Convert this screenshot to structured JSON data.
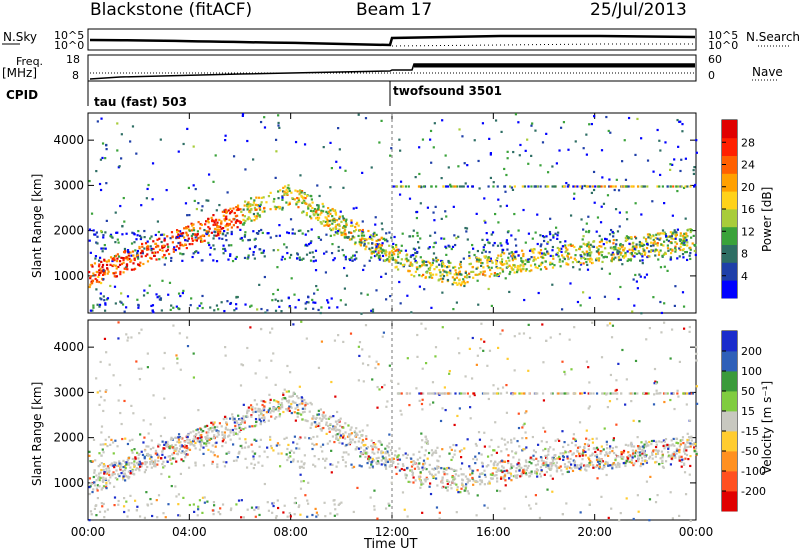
{
  "header": {
    "title": "Blackstone (fitACF)",
    "beam": "Beam 17",
    "date": "25/Jul/2013"
  },
  "summary": {
    "nsky_label": "N.Sky",
    "nsearch_label": "N.Search",
    "noise_ticks": [
      "10^5",
      "10^0"
    ],
    "freq_label": "Freq.",
    "freq_unit": "[MHz]",
    "freq_ticks": [
      "18",
      "8"
    ],
    "nave_label": "Nave",
    "nave_ticks": [
      "60",
      "0"
    ],
    "cpid_label": "CPID",
    "modes": [
      {
        "name": "tau (fast) 503"
      },
      {
        "name": "twofsound 3501"
      }
    ]
  },
  "chart_data": [
    {
      "type": "heatmap",
      "title": "",
      "xlabel": "Time UT",
      "ylabel": "Slant Range [km]",
      "x_ticks": [
        "00:00",
        "04:00",
        "08:00",
        "12:00",
        "16:00",
        "20:00",
        "00:00"
      ],
      "x_range_hours": [
        0,
        24
      ],
      "y_ticks": [
        1000,
        2000,
        3000,
        4000
      ],
      "ylim": [
        180,
        4600
      ],
      "colorbar": {
        "label": "Power [dB]",
        "ticks": [
          4,
          8,
          12,
          16,
          20,
          24,
          28
        ],
        "range": [
          0,
          32
        ],
        "colors": [
          "#0000ff",
          "#1f3fa8",
          "#2e6e64",
          "#3aa23a",
          "#a8cc3a",
          "#ffd21a",
          "#ffa000",
          "#ff6000",
          "#ff2000",
          "#e00000"
        ]
      }
    },
    {
      "type": "heatmap",
      "title": "",
      "xlabel": "Time UT",
      "ylabel": "Slant Range [km]",
      "x_ticks": [
        "00:00",
        "04:00",
        "08:00",
        "12:00",
        "16:00",
        "20:00",
        "00:00"
      ],
      "x_range_hours": [
        0,
        24
      ],
      "y_ticks": [
        1000,
        2000,
        3000,
        4000
      ],
      "ylim": [
        180,
        4600
      ],
      "colorbar": {
        "label": "Velocity [m s⁻¹]",
        "ticks": [
          200,
          100,
          50,
          15,
          -15,
          -50,
          -100,
          -200
        ],
        "colors": [
          "#1a2ccc",
          "#2f60b8",
          "#3a9a3a",
          "#80cc40",
          "#c8c8c0",
          "#ffcc30",
          "#ff9020",
          "#ff5020",
          "#e00000"
        ]
      }
    }
  ]
}
